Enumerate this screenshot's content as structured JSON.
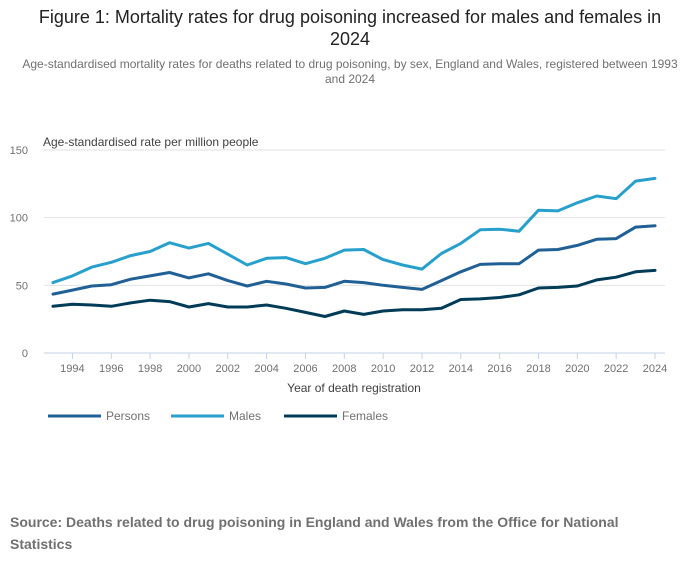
{
  "chart_data": {
    "type": "line",
    "title": "Figure 1: Mortality rates for drug poisoning increased for males and females in 2024",
    "subtitle": "Age-standardised mortality rates for deaths related to drug poisoning, by sex, England and Wales, registered between 1993 and 2024",
    "ylabel": "Age-standardised rate per million people",
    "xlabel": "Year of death registration",
    "ylim": [
      0,
      150
    ],
    "yticks": [
      0,
      50,
      100,
      150
    ],
    "xticks": [
      1994,
      1996,
      1998,
      2000,
      2002,
      2004,
      2006,
      2008,
      2010,
      2012,
      2014,
      2016,
      2018,
      2020,
      2022,
      2024
    ],
    "grid": true,
    "legend_position": "bottom-left",
    "x": [
      1993,
      1994,
      1995,
      1996,
      1997,
      1998,
      1999,
      2000,
      2001,
      2002,
      2003,
      2004,
      2005,
      2006,
      2007,
      2008,
      2009,
      2010,
      2011,
      2012,
      2013,
      2014,
      2015,
      2016,
      2017,
      2018,
      2019,
      2020,
      2021,
      2022,
      2023,
      2024
    ],
    "series": [
      {
        "name": "Persons",
        "color": "#206095",
        "values": [
          43.5,
          46.5,
          49.5,
          50.5,
          54.5,
          57,
          59.5,
          55.5,
          58.5,
          53.5,
          49.5,
          53,
          51,
          48,
          48.5,
          53,
          52,
          50,
          48.5,
          47,
          53.5,
          60,
          65.5,
          66,
          66,
          76,
          76.5,
          79.5,
          84,
          84.5,
          93,
          94
        ]
      },
      {
        "name": "Males",
        "color": "#27a0cc",
        "values": [
          52,
          57,
          63.5,
          67,
          72,
          75,
          81.5,
          77.5,
          81,
          73,
          65,
          70,
          70.5,
          66,
          70,
          76,
          76.5,
          69,
          65,
          62,
          73.5,
          81,
          91,
          91.5,
          90,
          105.5,
          105,
          111,
          116,
          114,
          127,
          129
        ]
      },
      {
        "name": "Females",
        "color": "#003c57",
        "values": [
          34.5,
          36,
          35.5,
          34.5,
          37,
          39,
          38,
          34,
          36.5,
          34,
          34,
          35.5,
          33,
          30,
          27,
          31,
          28.5,
          31,
          32,
          32,
          33,
          39.5,
          40,
          41,
          43,
          48,
          48.5,
          49.5,
          54,
          56,
          60,
          61
        ]
      }
    ]
  },
  "source": "Source: Deaths related to drug poisoning in England and Wales from the Office for National Statistics"
}
